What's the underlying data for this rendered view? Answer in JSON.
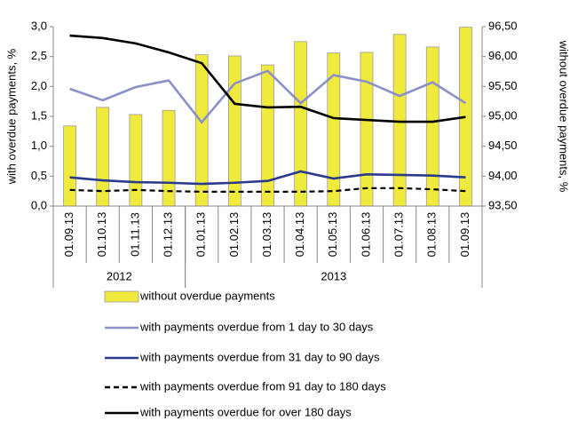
{
  "chart_data": {
    "type": "combo",
    "y_label": "with overdue payments, %",
    "y2_label": "without overdue payments, %",
    "categories": [
      "01.09.13",
      "01.10.13",
      "01.11.13",
      "01.12.13",
      "01.01.13",
      "01.02.13",
      "01.03.13",
      "01.04.13",
      "01.05.13",
      "01.06.13",
      "01.07.13",
      "01.08.13",
      "01.09.13"
    ],
    "groups": [
      {
        "label": "2012",
        "span": 4
      },
      {
        "label": "2013",
        "span": 9
      }
    ],
    "ylim": [
      0,
      3
    ],
    "yticks": [
      {
        "value": 0,
        "label": "0,0"
      },
      {
        "value": 0.5,
        "label": "0,5"
      },
      {
        "value": 1,
        "label": "1,0"
      },
      {
        "value": 1.5,
        "label": "1,5"
      },
      {
        "value": 2,
        "label": "2,0"
      },
      {
        "value": 2.5,
        "label": "2,5"
      },
      {
        "value": 3,
        "label": "3,0"
      }
    ],
    "y2lim": [
      93.5,
      96.5
    ],
    "y2ticks": [
      {
        "value": 93.5,
        "label": "93,50"
      },
      {
        "value": 94,
        "label": "94,00"
      },
      {
        "value": 94.5,
        "label": "94,50"
      },
      {
        "value": 95,
        "label": "95,00"
      },
      {
        "value": 95.5,
        "label": "95,50"
      },
      {
        "value": 96,
        "label": "96,00"
      },
      {
        "value": 96.5,
        "label": "96,50"
      }
    ],
    "series": [
      {
        "name": "without overdue payments",
        "type": "bar",
        "axis": "y2",
        "color": "#f0ea3c",
        "values": [
          94.84,
          95.15,
          95.03,
          95.1,
          96.03,
          96.01,
          95.86,
          96.25,
          96.06,
          96.07,
          96.37,
          96.16,
          96.49
        ]
      },
      {
        "name": "with payments overdue  from 1 day to 30 days",
        "type": "line",
        "axis": "y",
        "color": "#8c90c8",
        "dashed": false,
        "values": [
          1.96,
          1.77,
          1.99,
          2.1,
          1.4,
          2.05,
          2.26,
          1.72,
          2.19,
          2.08,
          1.84,
          2.07,
          1.72
        ]
      },
      {
        "name": "with payments overdue  from 31 day to 90 days",
        "type": "line",
        "axis": "y",
        "color": "#2a3a8c",
        "dashed": false,
        "values": [
          0.48,
          0.43,
          0.4,
          0.39,
          0.37,
          0.39,
          0.42,
          0.58,
          0.46,
          0.53,
          0.52,
          0.51,
          0.48
        ]
      },
      {
        "name": "with payments overdue  from 91 day to 180 days",
        "type": "line",
        "axis": "y",
        "color": "#000000",
        "dashed": true,
        "values": [
          0.27,
          0.25,
          0.27,
          0.25,
          0.24,
          0.24,
          0.24,
          0.24,
          0.25,
          0.3,
          0.3,
          0.28,
          0.25
        ]
      },
      {
        "name": "with payments overdue for over 180 days",
        "type": "line",
        "axis": "y",
        "color": "#000000",
        "dashed": false,
        "values": [
          2.85,
          2.81,
          2.72,
          2.57,
          2.39,
          1.71,
          1.65,
          1.66,
          1.47,
          1.44,
          1.41,
          1.41,
          1.49
        ]
      }
    ]
  }
}
